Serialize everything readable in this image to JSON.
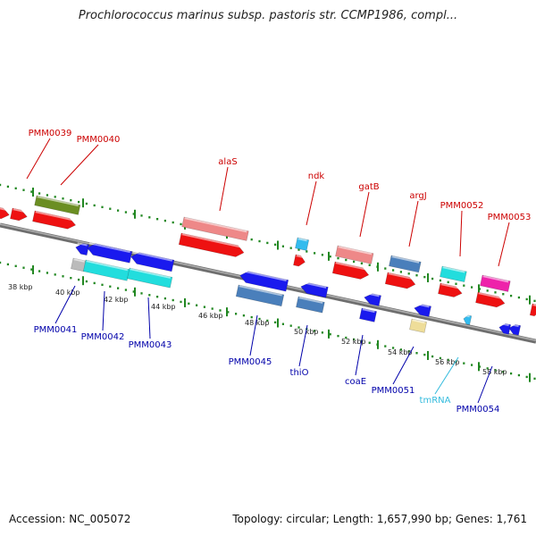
{
  "title": "Prochlorococcus marinus subsp. pastoris str. CCMP1986, compl...",
  "footer": {
    "accession": "Accession: NC_005072",
    "summary": "Topology: circular; Length: 1,657,990 bp; Genes: 1,761"
  },
  "colors": {
    "forward_label": "#cc0000",
    "reverse_label": "#0000aa",
    "rna_label": "#33bbdd",
    "ruler_tick": "#228822",
    "backbone": "#888888",
    "red": "#ee1111",
    "salmon": "#ee8888",
    "olive": "#6b8e23",
    "blue": "#1a1aee",
    "steelblue": "#4a7fbb",
    "cyan": "#22dddd",
    "magenta": "#ee22aa",
    "khaki": "#eedd99",
    "gray": "#bbbbbb",
    "skyblue": "#33bbee"
  },
  "ruler_labels": [
    "38 kbp",
    "40 kbp",
    "42 kbp",
    "44 kbp",
    "46 kbp",
    "48 kbp",
    "50 kbp",
    "52 kbp",
    "54 kbp",
    "56 kbp",
    "58 kbp"
  ],
  "forward_genes": [
    "PMM0039",
    "PMM0040",
    "alaS",
    "ndk",
    "gatB",
    "argJ",
    "PMM0052",
    "PMM0053"
  ],
  "reverse_genes": [
    "PMM0041",
    "PMM0042",
    "PMM0043",
    "PMM0045",
    "thiO",
    "coaE",
    "PMM0051",
    "tmRNA",
    "PMM0054"
  ]
}
